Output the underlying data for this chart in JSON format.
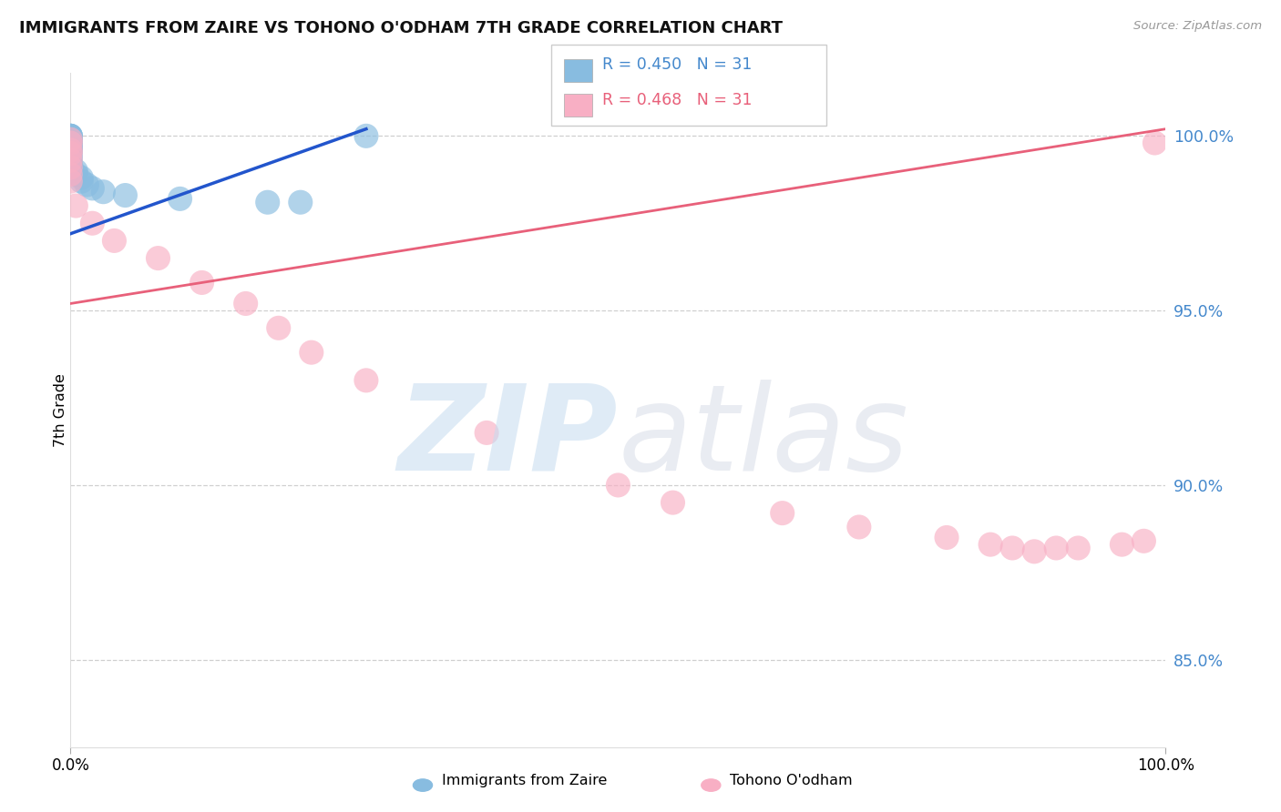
{
  "title": "IMMIGRANTS FROM ZAIRE VS TOHONO O'ODHAM 7TH GRADE CORRELATION CHART",
  "source": "Source: ZipAtlas.com",
  "ylabel": "7th Grade",
  "xlabel_left_label": "Immigrants from Zaire",
  "xlabel_right_label": "Tohono O'odham",
  "x_min": 0.0,
  "x_max": 1.0,
  "y_min": 0.825,
  "y_max": 1.018,
  "yticks": [
    0.85,
    0.9,
    0.95,
    1.0
  ],
  "ytick_labels": [
    "85.0%",
    "90.0%",
    "95.0%",
    "100.0%"
  ],
  "blue_R": "R = 0.450",
  "blue_N": "N = 31",
  "pink_R": "R = 0.468",
  "pink_N": "N = 31",
  "blue_color": "#88bce0",
  "pink_color": "#f8afc4",
  "blue_line_color": "#2255cc",
  "pink_line_color": "#e8607a",
  "title_color": "#111111",
  "axis_label_color": "#4488cc",
  "grid_color": "#bbbbbb",
  "source_color": "#999999",
  "blue_scatter_x": [
    0.0,
    0.0,
    0.0,
    0.0,
    0.0,
    0.0,
    0.0,
    0.0,
    0.0,
    0.0,
    0.0,
    0.0,
    0.0,
    0.0,
    0.0,
    0.0,
    0.0,
    0.0,
    0.0,
    0.005,
    0.005,
    0.01,
    0.01,
    0.015,
    0.02,
    0.03,
    0.05,
    0.1,
    0.18,
    0.21,
    0.27
  ],
  "blue_scatter_y": [
    1.0,
    1.0,
    1.0,
    1.0,
    0.999,
    0.999,
    0.999,
    0.999,
    0.998,
    0.998,
    0.997,
    0.997,
    0.996,
    0.996,
    0.995,
    0.994,
    0.993,
    0.992,
    0.991,
    0.99,
    0.989,
    0.988,
    0.987,
    0.986,
    0.985,
    0.984,
    0.983,
    0.982,
    0.981,
    0.981,
    1.0
  ],
  "pink_scatter_x": [
    0.0,
    0.0,
    0.0,
    0.0,
    0.0,
    0.0,
    0.0,
    0.0,
    0.005,
    0.02,
    0.04,
    0.08,
    0.12,
    0.16,
    0.19,
    0.22,
    0.27,
    0.38,
    0.5,
    0.55,
    0.65,
    0.72,
    0.8,
    0.84,
    0.86,
    0.88,
    0.9,
    0.92,
    0.96,
    0.98,
    0.99
  ],
  "pink_scatter_y": [
    0.999,
    0.998,
    0.996,
    0.995,
    0.993,
    0.991,
    0.989,
    0.987,
    0.98,
    0.975,
    0.97,
    0.965,
    0.958,
    0.952,
    0.945,
    0.938,
    0.93,
    0.915,
    0.9,
    0.895,
    0.892,
    0.888,
    0.885,
    0.883,
    0.882,
    0.881,
    0.882,
    0.882,
    0.883,
    0.884,
    0.998
  ],
  "blue_trend_x": [
    0.0,
    0.27
  ],
  "blue_trend_y": [
    0.972,
    1.002
  ],
  "pink_trend_x": [
    0.0,
    1.0
  ],
  "pink_trend_y": [
    0.952,
    1.002
  ]
}
